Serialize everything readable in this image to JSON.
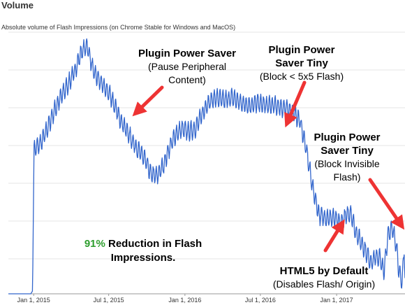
{
  "chart_data": {
    "type": "line",
    "title": "Volume",
    "subtitle": "Absolute volume of Flash Impressions (on Chrome Stable for Windows and MacOS)",
    "xlabel": "",
    "ylabel": "",
    "x_ticks": [
      "Jan 1, 2015",
      "Jul 1, 2015",
      "Jan 1, 2016",
      "Jul 1, 2016",
      "Jan 1, 2017"
    ],
    "x_range": [
      "2014-11-01",
      "2017-06-15"
    ],
    "y_range": [
      0,
      100
    ],
    "grid": "horizontal",
    "legend": "none",
    "color": "#3366cc",
    "series": [
      {
        "points": [
          [
            "2014-11-01",
            0
          ],
          [
            "2014-12-25",
            0
          ],
          [
            "2014-12-29",
            1
          ],
          [
            "2015-01-02",
            55
          ],
          [
            "2015-01-20",
            58
          ],
          [
            "2015-02-05",
            64
          ],
          [
            "2015-02-20",
            70
          ],
          [
            "2015-03-10",
            76
          ],
          [
            "2015-03-25",
            80
          ],
          [
            "2015-04-10",
            85
          ],
          [
            "2015-04-25",
            92
          ],
          [
            "2015-05-10",
            95
          ],
          [
            "2015-05-25",
            85
          ],
          [
            "2015-06-15",
            80
          ],
          [
            "2015-07-05",
            76
          ],
          [
            "2015-07-25",
            68
          ],
          [
            "2015-08-15",
            62
          ],
          [
            "2015-09-05",
            56
          ],
          [
            "2015-09-25",
            52
          ],
          [
            "2015-10-10",
            46
          ],
          [
            "2015-10-25",
            45
          ],
          [
            "2015-11-10",
            49
          ],
          [
            "2015-11-25",
            56
          ],
          [
            "2015-12-10",
            61
          ],
          [
            "2015-12-25",
            63
          ],
          [
            "2016-01-10",
            62
          ],
          [
            "2016-01-25",
            63
          ],
          [
            "2016-02-10",
            68
          ],
          [
            "2016-02-25",
            73
          ],
          [
            "2016-03-15",
            75
          ],
          [
            "2016-04-05",
            74
          ],
          [
            "2016-04-25",
            75
          ],
          [
            "2016-05-15",
            73
          ],
          [
            "2016-06-05",
            72
          ],
          [
            "2016-06-25",
            73
          ],
          [
            "2016-07-15",
            72
          ],
          [
            "2016-08-05",
            72
          ],
          [
            "2016-08-25",
            71
          ],
          [
            "2016-09-15",
            70
          ],
          [
            "2016-10-05",
            66
          ],
          [
            "2016-10-20",
            55
          ],
          [
            "2016-11-05",
            40
          ],
          [
            "2016-11-20",
            30
          ],
          [
            "2016-12-10",
            29
          ],
          [
            "2016-12-25",
            29
          ],
          [
            "2017-01-10",
            27
          ],
          [
            "2017-01-25",
            30
          ],
          [
            "2017-02-05",
            31
          ],
          [
            "2017-02-15",
            24
          ],
          [
            "2017-02-25",
            21
          ],
          [
            "2017-03-10",
            17
          ],
          [
            "2017-03-25",
            12
          ],
          [
            "2017-04-05",
            14
          ],
          [
            "2017-04-15",
            14
          ],
          [
            "2017-04-25",
            8
          ],
          [
            "2017-05-05",
            23
          ],
          [
            "2017-05-15",
            25
          ],
          [
            "2017-05-25",
            19
          ],
          [
            "2017-06-01",
            8
          ],
          [
            "2017-06-08",
            4
          ],
          [
            "2017-06-13",
            18
          ],
          [
            "2017-06-15",
            6
          ]
        ]
      }
    ],
    "annotations": [
      {
        "lines": [
          "Plugin Power Saver",
          "(Pause Peripheral",
          "Content)"
        ]
      },
      {
        "lines": [
          "Plugin Power",
          "Saver Tiny",
          "(Block < 5x5 Flash)"
        ]
      },
      {
        "lines": [
          "Plugin Power",
          "Saver Tiny",
          "(Block Invisible",
          "Flash)"
        ]
      },
      {
        "lines": [
          "HTML5 by Default",
          "(Disables Flash/ Origin)"
        ]
      }
    ],
    "reduction_note": {
      "percent": "91%",
      "line1_rest": " Reduction in Flash",
      "line2": "Impressions."
    },
    "arrow_color": "#ee3333"
  }
}
